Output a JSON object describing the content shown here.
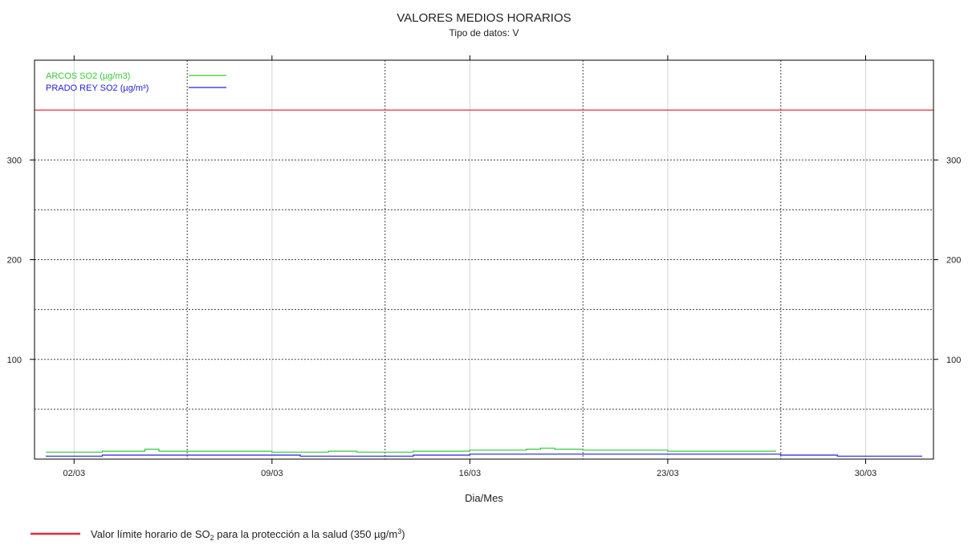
{
  "chart_data": {
    "type": "line",
    "title": "VALORES MEDIOS HORARIOS",
    "subtitle": "Tipo de datos: V",
    "xlabel": "Dia/Mes",
    "ylabel": "",
    "x_range_days": [
      0.6,
      32.4
    ],
    "x_tick_days": [
      2,
      9,
      16,
      23,
      30
    ],
    "x_tick_labels": [
      "02/03",
      "09/03",
      "16/03",
      "23/03",
      "30/03"
    ],
    "x_minor_grid_days": [
      6,
      13,
      20,
      27
    ],
    "ylim": [
      0,
      400
    ],
    "y_ticks": [
      100,
      200,
      300
    ],
    "y_tick_labels": [
      "100",
      "200",
      "300"
    ],
    "y_minor_grid": [
      50,
      150,
      250
    ],
    "grid": true,
    "legend_position": "top-left",
    "series": [
      {
        "name": "ARCOS SO2 (µg/m3)",
        "color": "#33cc33",
        "x": [
          1,
          2,
          3,
          4,
          4.5,
          5,
          6,
          7,
          8,
          9,
          10,
          11,
          12,
          13,
          14,
          15,
          16,
          17,
          18,
          18.5,
          19,
          20,
          21,
          22,
          23,
          24,
          25,
          26,
          26.8
        ],
        "values": [
          7,
          7,
          8,
          8,
          10,
          8,
          8,
          8,
          8,
          7,
          7,
          8,
          7,
          7,
          8,
          8,
          9,
          9,
          10,
          11,
          10,
          9,
          9,
          9,
          8,
          8,
          8,
          8,
          9
        ]
      },
      {
        "name": "PRADO REY SO2 (µg/m³)",
        "color": "#2222dd",
        "x": [
          1,
          2,
          3,
          4,
          5,
          6,
          7,
          8,
          9,
          10,
          11,
          12,
          13,
          14,
          15,
          16,
          17,
          18,
          19,
          20,
          21,
          22,
          23,
          24,
          25,
          26,
          27,
          28,
          29,
          30,
          31,
          32
        ],
        "values": [
          3,
          3,
          4,
          4,
          4,
          4,
          4,
          4,
          4,
          3,
          3,
          3,
          3,
          4,
          4,
          5,
          5,
          5,
          5,
          5,
          5,
          5,
          5,
          5,
          5,
          5,
          4,
          4,
          3,
          3,
          3,
          3
        ]
      }
    ],
    "reference_line": {
      "value": 350,
      "color": "#e8283a",
      "label_pre": "Valor límite horario de SO",
      "label_sub": "2",
      "label_mid": " para la protección a la salud (350 µg/m",
      "label_sup": "3",
      "label_post": ")"
    }
  }
}
